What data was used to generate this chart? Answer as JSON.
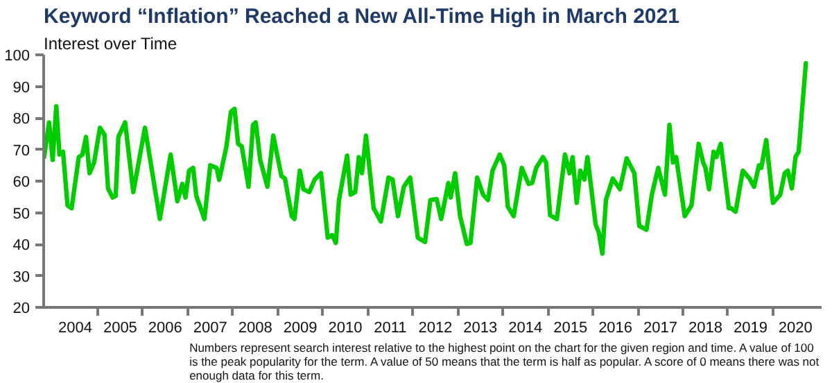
{
  "chart_data": {
    "type": "line",
    "title": "Keyword “Inflation” Reached a New All-Time High in March 2021",
    "subtitle": "Interest over Time",
    "x": [
      2003.81,
      2003.92,
      2004.0,
      2004.08,
      2004.15,
      2004.23,
      2004.33,
      2004.42,
      2004.58,
      2004.66,
      2004.74,
      2004.82,
      2004.92,
      2005.05,
      2005.15,
      2005.23,
      2005.33,
      2005.4,
      2005.46,
      2005.61,
      2005.79,
      2006.05,
      2006.38,
      2006.62,
      2006.77,
      2006.88,
      2006.95,
      2007.03,
      2007.12,
      2007.19,
      2007.37,
      2007.5,
      2007.64,
      2007.7,
      2007.86,
      2007.96,
      2008.04,
      2008.12,
      2008.2,
      2008.35,
      2008.45,
      2008.51,
      2008.61,
      2008.77,
      2008.9,
      2009.08,
      2009.16,
      2009.31,
      2009.37,
      2009.49,
      2009.57,
      2009.7,
      2009.82,
      2009.96,
      2010.11,
      2010.21,
      2010.29,
      2010.36,
      2010.54,
      2010.62,
      2010.72,
      2010.8,
      2010.87,
      2010.96,
      2011.13,
      2011.29,
      2011.46,
      2011.55,
      2011.67,
      2011.8,
      2011.94,
      2012.11,
      2012.27,
      2012.39,
      2012.53,
      2012.63,
      2012.79,
      2012.84,
      2012.94,
      2013.05,
      2013.2,
      2013.28,
      2013.43,
      2013.56,
      2013.67,
      2013.77,
      2013.93,
      2014.03,
      2014.11,
      2014.24,
      2014.42,
      2014.57,
      2014.65,
      2014.74,
      2014.89,
      2014.96,
      2015.05,
      2015.2,
      2015.38,
      2015.48,
      2015.55,
      2015.64,
      2015.72,
      2015.81,
      2015.88,
      2016.06,
      2016.13,
      2016.21,
      2016.29,
      2016.44,
      2016.6,
      2016.75,
      2016.92,
      2017.03,
      2017.19,
      2017.31,
      2017.45,
      2017.6,
      2017.7,
      2017.78,
      2017.85,
      2018.04,
      2018.19,
      2018.35,
      2018.45,
      2018.5,
      2018.58,
      2018.68,
      2018.74,
      2018.84,
      2019.02,
      2019.07,
      2019.17,
      2019.33,
      2019.48,
      2019.58,
      2019.69,
      2019.74,
      2019.85,
      2020.0,
      2020.16,
      2020.26,
      2020.33,
      2020.42,
      2020.5,
      2020.57,
      2020.73
    ],
    "series": [
      {
        "color": "#00cc00",
        "values": [
          67.6,
          78.6,
          66.7,
          83.7,
          68.4,
          69.3,
          52.3,
          51.4,
          67.6,
          68.4,
          74.0,
          62.5,
          65.9,
          76.9,
          74.7,
          57.7,
          54.8,
          55.3,
          74.0,
          78.6,
          56.5,
          76.9,
          48.0,
          68.4,
          53.6,
          59.1,
          54.8,
          63.3,
          64.2,
          55.3,
          48.0,
          65.0,
          64.2,
          60.4,
          71.0,
          82.0,
          82.9,
          71.8,
          71.0,
          58.2,
          77.8,
          78.6,
          66.7,
          58.2,
          74.4,
          61.6,
          60.8,
          48.9,
          48.0,
          63.3,
          57.4,
          56.5,
          60.5,
          62.5,
          42.1,
          42.9,
          40.4,
          54.0,
          68.1,
          55.7,
          56.5,
          67.6,
          62.5,
          74.4,
          51.4,
          47.2,
          61.1,
          60.5,
          48.9,
          58.2,
          61.1,
          42.1,
          40.7,
          54.0,
          54.3,
          48.0,
          59.4,
          54.8,
          62.5,
          48.9,
          40.1,
          40.4,
          61.1,
          55.7,
          54.0,
          63.3,
          68.4,
          65.0,
          51.9,
          48.9,
          64.2,
          59.1,
          59.4,
          64.2,
          67.6,
          65.9,
          49.2,
          48.0,
          68.4,
          62.5,
          67.6,
          53.1,
          63.3,
          60.5,
          67.6,
          46.3,
          43.8,
          37.0,
          54.0,
          60.8,
          57.4,
          67.2,
          62.5,
          45.8,
          44.6,
          55.7,
          64.2,
          55.7,
          77.8,
          65.9,
          67.6,
          48.9,
          52.3,
          71.8,
          65.9,
          64.2,
          57.4,
          69.3,
          67.6,
          71.8,
          51.4,
          51.4,
          50.3,
          63.3,
          60.8,
          58.2,
          65.0,
          64.2,
          73.0,
          53.1,
          55.7,
          62.5,
          63.3,
          57.7,
          67.6,
          69.3,
          97.3
        ]
      }
    ],
    "xlim": [
      2003.8,
      2021.08
    ],
    "xticks": [
      {
        "value": 2004.5,
        "label": "2004"
      },
      {
        "value": 2005.5,
        "label": "2005"
      },
      {
        "value": 2006.5,
        "label": "2006"
      },
      {
        "value": 2007.5,
        "label": "2007"
      },
      {
        "value": 2008.5,
        "label": "2008"
      },
      {
        "value": 2009.5,
        "label": "2009"
      },
      {
        "value": 2010.5,
        "label": "2010"
      },
      {
        "value": 2011.5,
        "label": "2011"
      },
      {
        "value": 2012.5,
        "label": "2012"
      },
      {
        "value": 2013.5,
        "label": "2013"
      },
      {
        "value": 2014.5,
        "label": "2014"
      },
      {
        "value": 2015.5,
        "label": "2015"
      },
      {
        "value": 2016.5,
        "label": "2016"
      },
      {
        "value": 2017.5,
        "label": "2017"
      },
      {
        "value": 2018.5,
        "label": "2018"
      },
      {
        "value": 2019.5,
        "label": "2019"
      },
      {
        "value": 2020.5,
        "label": "2020"
      },
      {
        "value": 2005,
        "label": null
      },
      {
        "value": 2006,
        "label": null
      },
      {
        "value": 2007,
        "label": null
      },
      {
        "value": 2008,
        "label": null
      },
      {
        "value": 2009,
        "label": null
      },
      {
        "value": 2010,
        "label": null
      },
      {
        "value": 2011,
        "label": null
      },
      {
        "value": 2012,
        "label": null
      },
      {
        "value": 2013,
        "label": null
      },
      {
        "value": 2014,
        "label": null
      },
      {
        "value": 2015,
        "label": null
      },
      {
        "value": 2016,
        "label": null
      },
      {
        "value": 2017,
        "label": null
      },
      {
        "value": 2018,
        "label": null
      },
      {
        "value": 2019,
        "label": null
      },
      {
        "value": 2020,
        "label": null
      }
    ],
    "ylim": [
      20,
      100
    ],
    "yticks": [
      20,
      30,
      40,
      50,
      60,
      70,
      80,
      90,
      100
    ],
    "grid": false,
    "line_style": "solid",
    "annotations": [
      "Numbers represent search interest relative to the highest point on the chart for the given region and time. A value of 100 is the peak popularity for the term. A value of 50 means that the term is half as popular. A score of 0 means there was not enough data for this term."
    ]
  }
}
